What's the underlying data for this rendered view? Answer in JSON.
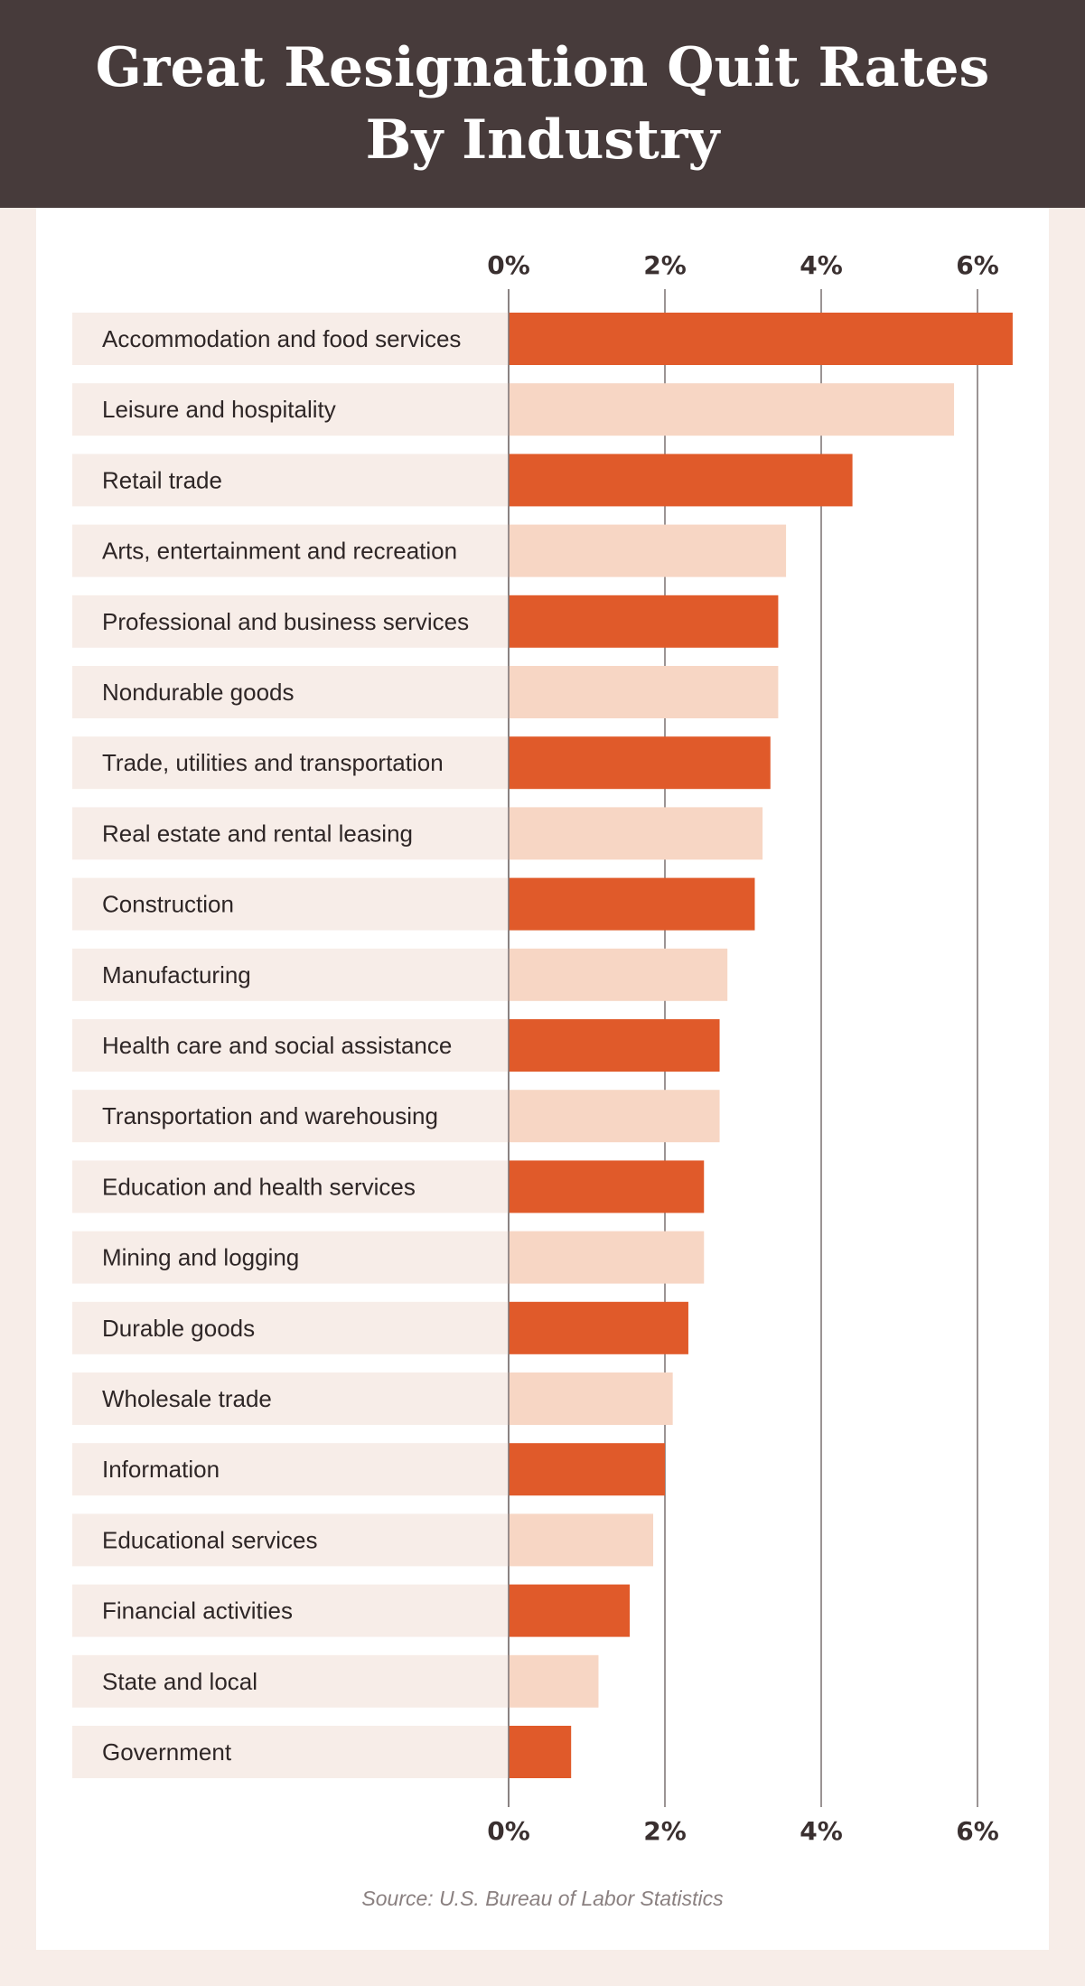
{
  "colors": {
    "header_bg": "#473b3b",
    "bar_dark": "#e05a2a",
    "bar_light": "#f7d6c4",
    "label_bg": "#f7ede8",
    "grid": "#7a7070"
  },
  "chart_data": {
    "type": "bar",
    "orientation": "horizontal",
    "title": "Great Resignation Quit Rates By Industry",
    "source": "Source: U.S. Bureau of Labor Statistics",
    "xlim": [
      0,
      6.5
    ],
    "ticks": [
      "0%",
      "2%",
      "4%",
      "6%"
    ],
    "tick_values": [
      0,
      2,
      4,
      6
    ],
    "grid": true,
    "categories": [
      "Accommodation and food services",
      "Leisure and hospitality",
      "Retail trade",
      "Arts, entertainment and recreation",
      "Professional and business services",
      "Nondurable goods",
      "Trade, utilities and transportation",
      "Real estate and rental leasing",
      "Construction",
      "Manufacturing",
      "Health care and social assistance",
      "Transportation and warehousing",
      "Education and health services",
      "Mining and logging",
      "Durable goods",
      "Wholesale trade",
      "Information",
      "Educational services",
      "Financial activities",
      "State and local",
      "Government"
    ],
    "values": [
      6.45,
      5.7,
      4.4,
      3.55,
      3.45,
      3.45,
      3.35,
      3.25,
      3.15,
      2.8,
      2.7,
      2.7,
      2.5,
      2.5,
      2.3,
      2.1,
      2.0,
      1.85,
      1.55,
      1.15,
      0.8
    ]
  }
}
